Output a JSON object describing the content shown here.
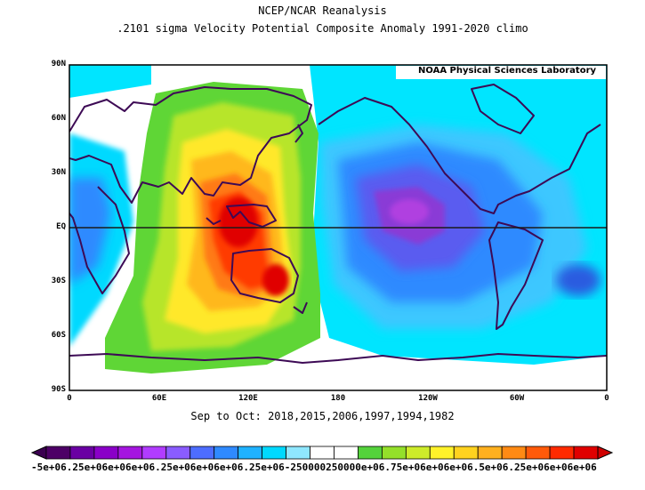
{
  "header": {
    "line1": "NCEP/NCAR Reanalysis",
    "line2": ".2101 sigma Velocity Potential   Composite Anomaly 1991-2020 climo"
  },
  "map": {
    "credit": "NOAA Physical Sciences Laboratory",
    "lat_labels": [
      "90N",
      "60N",
      "30N",
      "EQ",
      "30S",
      "60S",
      "90S"
    ],
    "lon_labels": [
      "0",
      "60E",
      "120E",
      "180",
      "120W",
      "60W",
      "0"
    ],
    "subtitle": "Sep to Oct: 2018,2015,2006,1997,1994,1982",
    "colors": {
      "land_outline": "#3d0a55",
      "equator": "#1a1a1a",
      "frame": "#000000"
    },
    "fields": {
      "positive_center": "Maritime Continent / Australia",
      "negative_center": "Central-East Pacific"
    }
  },
  "colorbar": {
    "label_text": "-5e+06.25e+06e+06e+06.25e+06e+06e+06.25e+06-250000250000e+06.75e+06e+06e+06.5e+06.25e+06e+06e+06",
    "colors": [
      "#4d0066",
      "#6a00a3",
      "#8a00c8",
      "#a516e0",
      "#b13cff",
      "#8a5cff",
      "#4d6dff",
      "#2f8aff",
      "#1fb2ff",
      "#00d9ff",
      "#8fe7ff",
      "#ffffff",
      "#ffffff",
      "#54d23b",
      "#94e02a",
      "#cdeb2a",
      "#fff22a",
      "#ffd21f",
      "#ffb01f",
      "#ff8a14",
      "#ff5a0a",
      "#ff2a00",
      "#e00000"
    ],
    "left_arrow_color": "#3b0050",
    "right_arrow_color": "#d00000"
  }
}
